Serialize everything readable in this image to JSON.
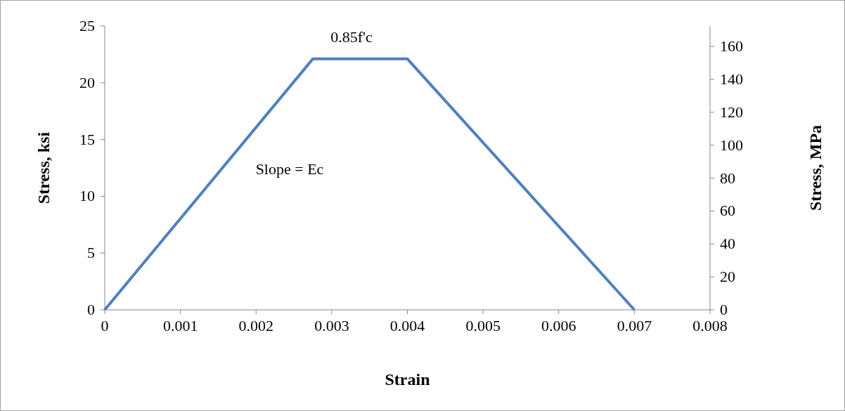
{
  "chart_data": {
    "type": "line",
    "xlabel": "Strain",
    "ylabel": "Stress, ksi",
    "y2label": "Stress, MPa",
    "x": [
      0,
      0.00275,
      0.004,
      0.007
    ],
    "series": [
      {
        "color": "#4f81bd",
        "values": [
          0,
          22.1,
          22.1,
          0
        ]
      }
    ],
    "xlim": [
      0,
      0.008
    ],
    "xticks": [
      0,
      0.001,
      0.002,
      0.003,
      0.004,
      0.005,
      0.006,
      0.007,
      0.008
    ],
    "ylim": [
      0,
      25
    ],
    "yticks": [
      0,
      5,
      10,
      15,
      20,
      25
    ],
    "y2lim": [
      0,
      172.4
    ],
    "y2ticks": [
      0,
      20,
      40,
      60,
      80,
      100,
      120,
      140,
      160
    ],
    "annotations": [
      "0.85f'c",
      "Slope = Ec"
    ],
    "grid": false,
    "marker": "none",
    "line_style": "solid"
  }
}
